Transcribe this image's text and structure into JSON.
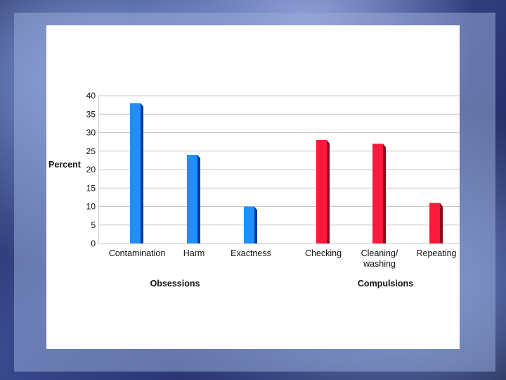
{
  "chart_data": {
    "type": "bar",
    "categories": [
      "Contamination",
      "Harm",
      "Exactness",
      "Checking",
      "Cleaning/ washing",
      "Repeating"
    ],
    "values": [
      38,
      24,
      10,
      28,
      27,
      11
    ],
    "ylabel": "Percent",
    "ylim": [
      0,
      40
    ],
    "yticks": [
      0,
      5,
      10,
      15,
      20,
      25,
      30,
      35,
      40
    ],
    "grid": true,
    "groups": [
      {
        "label": "Obsessions",
        "categories": [
          "Contamination",
          "Harm",
          "Exactness"
        ],
        "color": "#1f8fff",
        "side_color": "#0a3a9a"
      },
      {
        "label": "Compulsions",
        "categories": [
          "Checking",
          "Cleaning/ washing",
          "Repeating"
        ],
        "color": "#ff1a3c",
        "side_color": "#8a0a1c"
      }
    ]
  }
}
